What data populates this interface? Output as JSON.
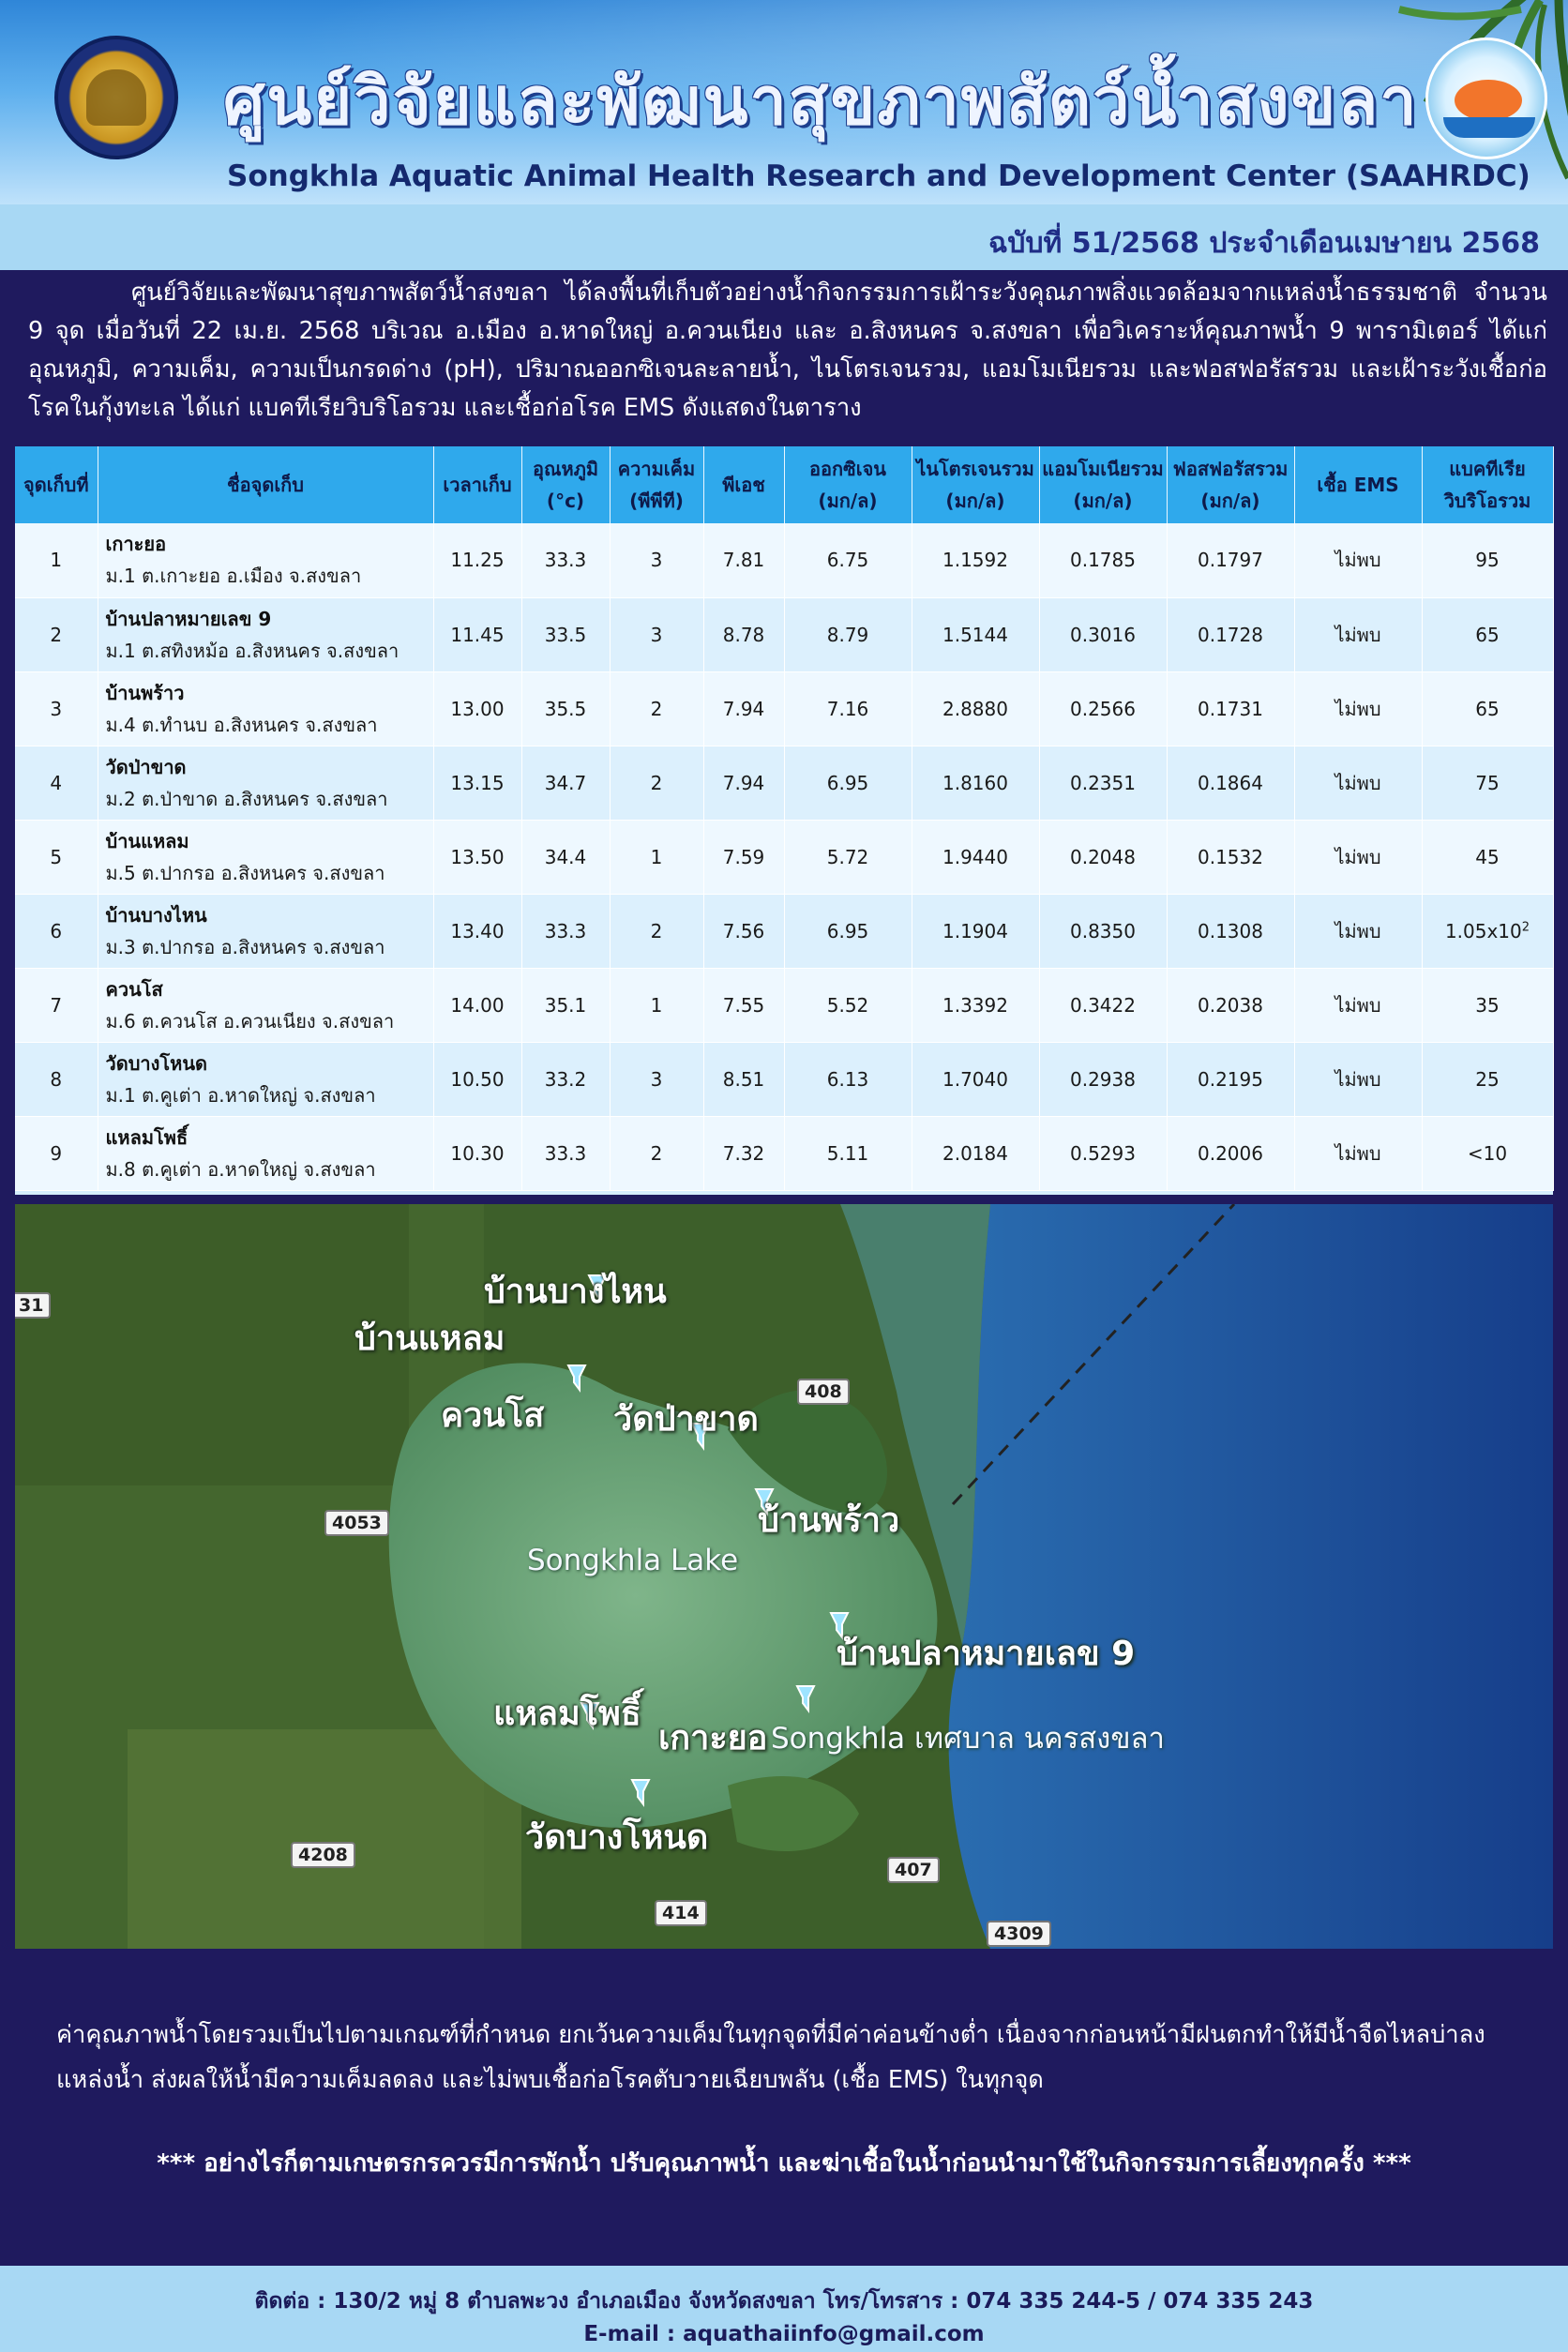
{
  "header": {
    "title_th": "ศูนย์วิจัยและพัฒนาสุขภาพสัตว์น้ำสงขลา",
    "title_en": "Songkhla Aquatic Animal Health Research and Development Center (SAAHRDC)"
  },
  "issue": "ฉบับที่ 51/2568 ประจำเดือนเมษายน 2568",
  "intro": "ศูนย์วิจัยและพัฒนาสุขภาพสัตว์น้ำสงขลา ได้ลงพื้นที่เก็บตัวอย่างน้ำกิจกรรมการเฝ้าระวังคุณภาพสิ่งแวดล้อมจากแหล่งน้ำธรรมชาติ จำนวน 9 จุด เมื่อวันที่ 22 เม.ย. 2568 บริเวณ อ.เมือง อ.หาดใหญ่ อ.ควนเนียง และ อ.สิงหนคร จ.สงขลา เพื่อวิเคราะห์คุณภาพน้ำ 9 พารามิเตอร์ ได้แก่ อุณหภูมิ, ความเค็ม, ความเป็นกรดด่าง (pH), ปริมาณออกซิเจนละลายน้ำ, ไนโตรเจนรวม, แอมโมเนียรวม และฟอสฟอรัสรวม และเฝ้าระวังเชื้อก่อโรคในกุ้งทะเล ได้แก่ แบคทีเรียวิบริโอรวม  และเชื้อก่อโรค EMS ดังแสดงในตาราง",
  "table": {
    "headers": {
      "point": "จุดเก็บที่",
      "name": "ชื่อจุดเก็บ",
      "time": "เวลาเก็บ",
      "temp_1": "อุณหภูมิ",
      "temp_2": "(°c)",
      "sal_1": "ความเค็ม",
      "sal_2": "(พีพีที)",
      "ph": "พีเอช",
      "do_1": "ออกซิเจน",
      "do_2": "(มก/ล)",
      "tn_1": "ไนโตรเจนรวม",
      "tn_2": "(มก/ล)",
      "tan_1": "แอมโมเนียรวม",
      "tan_2": "(มก/ล)",
      "tp_1": "ฟอสฟอรัสรวม",
      "tp_2": "(มก/ล)",
      "ems": "เชื้อ EMS",
      "vib_1": "แบคทีเรีย",
      "vib_2": "วิบริโอรวม"
    },
    "rows": [
      {
        "no": "1",
        "name": "เกาะยอ",
        "addr": "ม.1 ต.เกาะยอ อ.เมือง จ.สงขลา",
        "time": "11.25",
        "temp": "33.3",
        "sal": "3",
        "ph": "7.81",
        "do": "6.75",
        "tn": "1.1592",
        "tan": "0.1785",
        "tp": "0.1797",
        "ems": "ไม่พบ",
        "vib": "95"
      },
      {
        "no": "2",
        "name": "บ้านปลาหมายเลข 9",
        "addr": "ม.1 ต.สทิงหม้อ อ.สิงหนคร จ.สงขลา",
        "time": "11.45",
        "temp": "33.5",
        "sal": "3",
        "ph": "8.78",
        "do": "8.79",
        "tn": "1.5144",
        "tan": "0.3016",
        "tp": "0.1728",
        "ems": "ไม่พบ",
        "vib": "65"
      },
      {
        "no": "3",
        "name": "บ้านพร้าว",
        "addr": "ม.4 ต.ทำนบ อ.สิงหนคร จ.สงขลา",
        "time": "13.00",
        "temp": "35.5",
        "sal": "2",
        "ph": "7.94",
        "do": "7.16",
        "tn": "2.8880",
        "tan": "0.2566",
        "tp": "0.1731",
        "ems": "ไม่พบ",
        "vib": "65"
      },
      {
        "no": "4",
        "name": "วัดป่าขาด",
        "addr": "ม.2 ต.ป่าขาด อ.สิงหนคร จ.สงขลา",
        "time": "13.15",
        "temp": "34.7",
        "sal": "2",
        "ph": "7.94",
        "do": "6.95",
        "tn": "1.8160",
        "tan": "0.2351",
        "tp": "0.1864",
        "ems": "ไม่พบ",
        "vib": "75"
      },
      {
        "no": "5",
        "name": "บ้านแหลม",
        "addr": "ม.5 ต.ปากรอ อ.สิงหนคร จ.สงขลา",
        "time": "13.50",
        "temp": "34.4",
        "sal": "1",
        "ph": "7.59",
        "do": "5.72",
        "tn": "1.9440",
        "tan": "0.2048",
        "tp": "0.1532",
        "ems": "ไม่พบ",
        "vib": "45"
      },
      {
        "no": "6",
        "name": "บ้านบางไหน",
        "addr": "ม.3 ต.ปากรอ อ.สิงหนคร จ.สงขลา",
        "time": "13.40",
        "temp": "33.3",
        "sal": "2",
        "ph": "7.56",
        "do": "6.95",
        "tn": "1.1904",
        "tan": "0.8350",
        "tp": "0.1308",
        "ems": "ไม่พบ",
        "vib": "1.05x10",
        "vib_exp": "2"
      },
      {
        "no": "7",
        "name": "ควนโส",
        "addr": "ม.6 ต.ควนโส อ.ควนเนียง จ.สงขลา",
        "time": "14.00",
        "temp": "35.1",
        "sal": "1",
        "ph": "7.55",
        "do": "5.52",
        "tn": "1.3392",
        "tan": "0.3422",
        "tp": "0.2038",
        "ems": "ไม่พบ",
        "vib": "35"
      },
      {
        "no": "8",
        "name": "วัดบางโหนด",
        "addr": "ม.1 ต.คูเต่า อ.หาดใหญ่ จ.สงขลา",
        "time": "10.50",
        "temp": "33.2",
        "sal": "3",
        "ph": "8.51",
        "do": "6.13",
        "tn": "1.7040",
        "tan": "0.2938",
        "tp": "0.2195",
        "ems": "ไม่พบ",
        "vib": "25"
      },
      {
        "no": "9",
        "name": "แหลมโพธิ์",
        "addr": "ม.8 ต.คูเต่า อ.หาดใหญ่ จ.สงขลา",
        "time": "10.30",
        "temp": "33.3",
        "sal": "2",
        "ph": "7.32",
        "do": "5.11",
        "tn": "2.0184",
        "tan": "0.5293",
        "tp": "0.2006",
        "ems": "ไม่พบ",
        "vib": "<10"
      }
    ]
  },
  "map": {
    "labels": {
      "bangnai": "บ้านบางไหน",
      "baanlaem": "บ้านแหลม",
      "khuanso": "ควนโส",
      "watpakhat": "วัดป่าขาด",
      "baanphrao": "บ้านพร้าว",
      "lake": "Songkhla Lake",
      "pla9": "บ้านปลาหมายเลข 9",
      "laempho": "แหลมโพธิ์",
      "kohyo": "เกาะยอ",
      "city": "Songkhla เทศบาล นครสงขลา",
      "watbangnod": "วัดบางโหนด"
    },
    "roads": {
      "r408": "408",
      "r4053": "4053",
      "r4208": "4208",
      "r414": "414",
      "r407": "407",
      "r4309": "4309",
      "r31": "31"
    }
  },
  "summary": "ค่าคุณภาพน้ำโดยรวมเป็นไปตามเกณฑ์ที่กำหนด ยกเว้นความเค็มในทุกจุดที่มีค่าค่อนข้างต่ำ  เนื่องจากก่อนหน้ามีฝนตกทำให้มีน้ำจืดไหลบ่าลงแหล่งน้ำ ส่งผลให้น้ำมีความเค็มลดลง และไม่พบเชื้อก่อโรคตับวายเฉียบพลัน (เชื้อ EMS) ในทุกจุด",
  "notice": "*** อย่างไรก็ตามเกษตรกรควรมีการพักน้ำ ปรับคุณภาพน้ำ และฆ่าเชื้อในน้ำก่อนนำมาใช้ในกิจกรรมการเลี้ยงทุกครั้ง ***",
  "contact": {
    "address": "ติดต่อ : 130/2 หมู่ 8 ตำบลพะวง อำเภอเมือง จังหวัดสงขลา โทร/โทรสาร : 074 335 244-5 / 074 335 243",
    "email": "E-mail : aquathaiinfo@gmail.com"
  },
  "colors": {
    "background": "#1f1a5e",
    "header_blue": "#2f86d8",
    "table_header": "#2fa9ec",
    "bar_light": "#a8d8f4"
  }
}
